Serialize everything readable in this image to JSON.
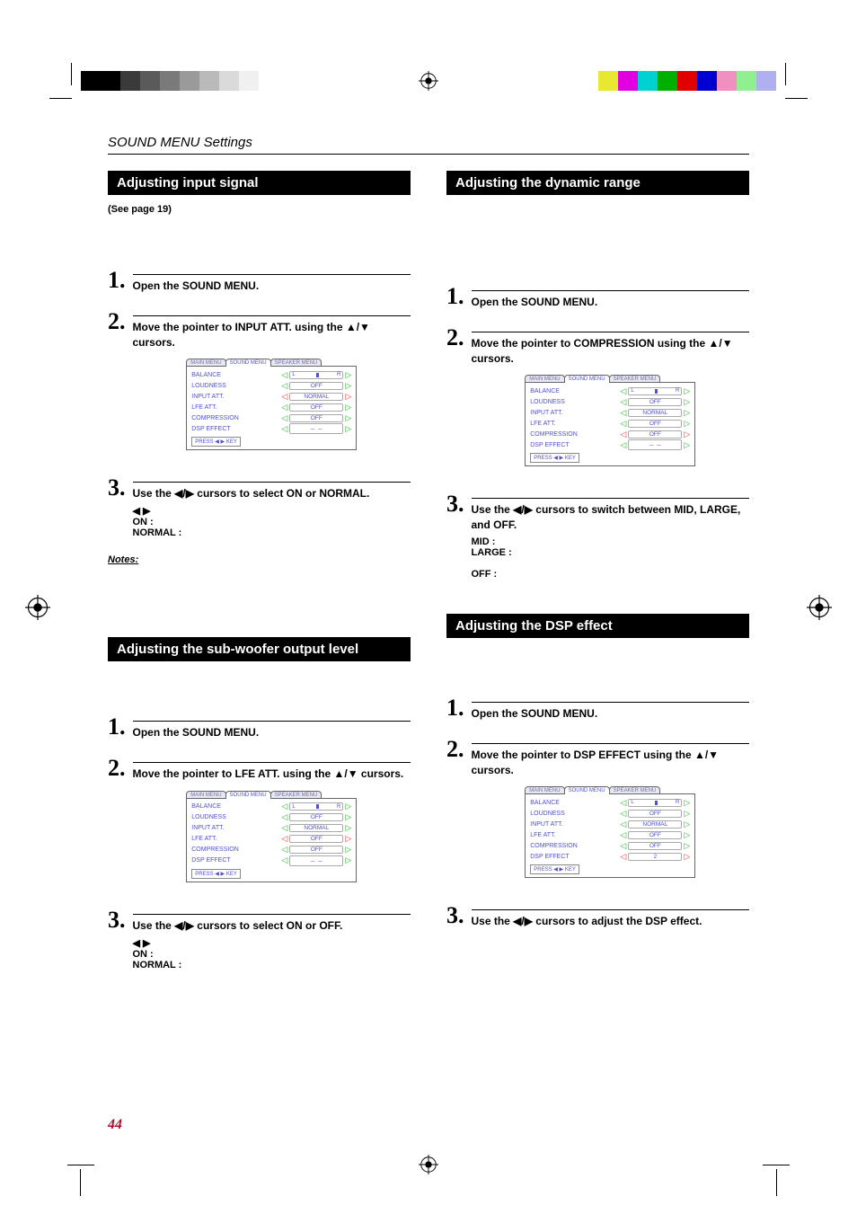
{
  "print": {
    "gray_shades": [
      "#000000",
      "#000000",
      "#3a3a3a",
      "#5a5a5a",
      "#7a7a7a",
      "#9a9a9a",
      "#bababa",
      "#dadada",
      "#f0f0f0"
    ],
    "color_swatches": [
      "#e8e830",
      "#e000e0",
      "#00d0d0",
      "#00b000",
      "#e00000",
      "#0000d0",
      "#f090c0",
      "#90f090",
      "#b0b0f0"
    ]
  },
  "chapter": "SOUND MENU Settings",
  "page_number": "44",
  "osd": {
    "tabs": [
      "MAIN MENU",
      "SOUND MENU",
      "SPEAKER MENU"
    ],
    "press": "PRESS ◀ ▶ KEY",
    "rows": {
      "balance": "BALANCE",
      "loudness": "LOUDNESS",
      "input_att": "INPUT ATT.",
      "lfe_att": "LFE ATT.",
      "compression": "COMPRESSION",
      "dsp_effect": "DSP EFFECT"
    },
    "vals": {
      "off": "OFF",
      "normal": "NORMAL",
      "dashes": "－ －",
      "two": "2",
      "slider_l": "L",
      "slider_r": "R"
    }
  },
  "left": {
    "sec1": {
      "title": "Adjusting input signal",
      "subnote": "(See page 19)",
      "step1": "Open the SOUND MENU.",
      "step2": "Move the pointer to INPUT ATT. using the ▲/▼ cursors.",
      "step3": "Use the ◀/▶ cursors to select ON or NORMAL.",
      "step3_sub": "        ◀ ▶\nON          :\nNORMAL :",
      "notes": "Notes:"
    },
    "sec2": {
      "title": "Adjusting the sub-woofer output level",
      "step1": "Open the SOUND MENU.",
      "step2": "Move the pointer to LFE ATT. using the ▲/▼ cursors.",
      "step3": "Use the ◀/▶ cursors to select ON or OFF.",
      "step3_sub": "        ◀ ▶\nON          :\nNORMAL :"
    }
  },
  "right": {
    "sec1": {
      "title": "Adjusting the dynamic range",
      "step1": "Open the SOUND MENU.",
      "step2": "Move the pointer to COMPRESSION using the ▲/▼ cursors.",
      "step3": "Use the ◀/▶ cursors to switch between MID, LARGE, and OFF.",
      "step3_sub": "MID      :\nLARGE  :\n\nOFF       :"
    },
    "sec2": {
      "title": "Adjusting the DSP effect",
      "step1": "Open the SOUND MENU.",
      "step2": "Move the pointer to DSP EFFECT using the ▲/▼ cursors.",
      "step3": "Use the ◀/▶ cursors to adjust the DSP effect."
    }
  }
}
